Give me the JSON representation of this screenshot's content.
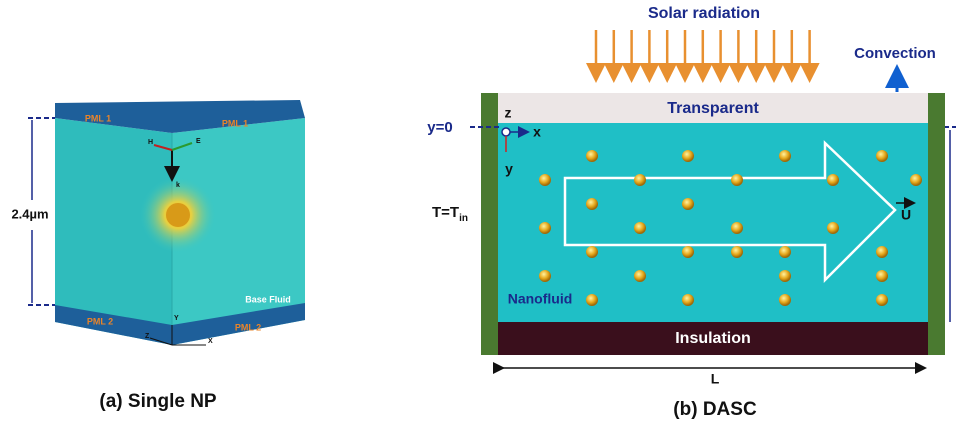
{
  "panel_a": {
    "caption": "(a) Single NP",
    "pml_top_left": "PML 1",
    "pml_top_right": "PML 1",
    "pml_bottom_left": "PML 2",
    "pml_bottom_right": "PML 2",
    "field_h": "H",
    "field_e": "E",
    "field_k": "k",
    "dimension": "2.4µm",
    "medium": "Base Fluid",
    "axis_z": "Z",
    "axis_y": "Y",
    "axis_x": "X"
  },
  "panel_b": {
    "caption": "(b) DASC",
    "solar": "Solar radiation",
    "convection": "Convection",
    "top_layer": "Transparent",
    "origin": "y=0",
    "axis_z": "z",
    "axis_x": "x",
    "axis_y": "y",
    "inlet_temp": {
      "main": "T=T",
      "sub": "in"
    },
    "velocity": "U",
    "fluid": "Nanofluid",
    "bottom_layer": "Insulation",
    "length": "L"
  }
}
